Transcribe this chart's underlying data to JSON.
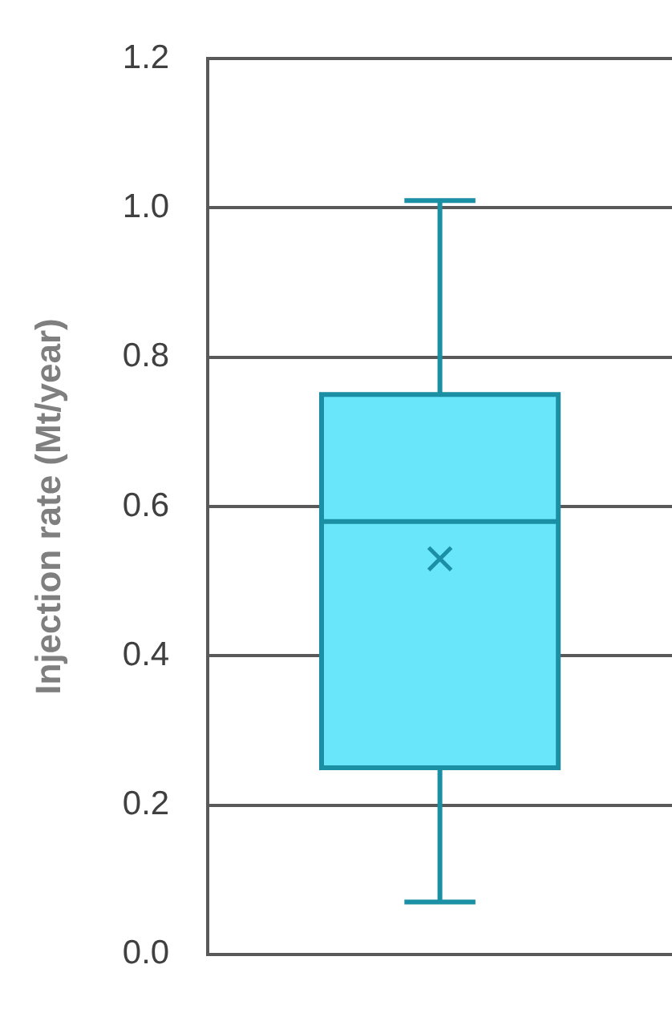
{
  "chart_data": {
    "type": "box",
    "ylabel": "Injection rate (Mt/year)",
    "categories": [
      null
    ],
    "boxes": [
      {
        "low": 0.07,
        "q1": 0.25,
        "median": 0.58,
        "q3": 0.75,
        "high": 1.01,
        "mean": 0.53
      }
    ],
    "color": "#6ae6fb",
    "marker": "cross",
    "ylim": [
      0,
      1.2
    ],
    "yticks": [
      {
        "value": 0,
        "label": "0.0"
      },
      0.2,
      0.4,
      0.6,
      0.8,
      {
        "value": 1,
        "label": "1.0"
      },
      1.2
    ],
    "grid": "y",
    "tick_labels": "y",
    "legend": false
  }
}
